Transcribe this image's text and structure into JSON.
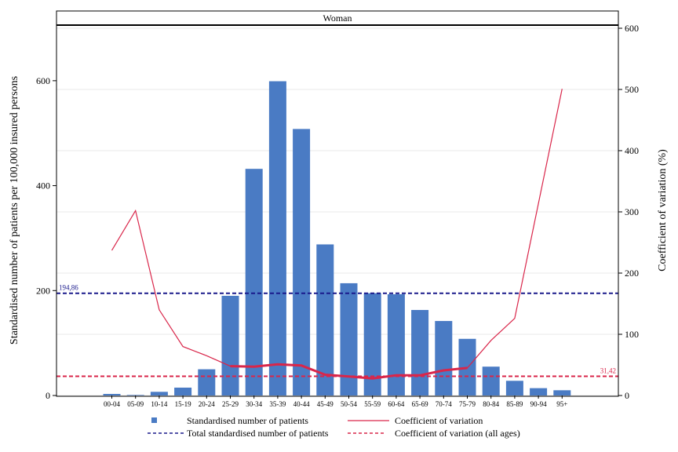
{
  "chart_data": {
    "type": "bar",
    "panel_title": "Woman",
    "categories": [
      "00-04",
      "05-09",
      "10-14",
      "15-19",
      "20-24",
      "25-29",
      "30-34",
      "35-39",
      "40-44",
      "45-49",
      "50-54",
      "55-59",
      "60-64",
      "65-69",
      "70-74",
      "75-79",
      "80-84",
      "85-89",
      "90-94",
      "95+"
    ],
    "ylabel": "Standardised number of patients per 100,000 insured persons",
    "y2label": "Coefficient of variation (%)",
    "ylim": [
      0,
      700
    ],
    "y2lim": [
      0,
      600
    ],
    "yticks": [
      0,
      200,
      400,
      600
    ],
    "y2ticks": [
      0,
      100,
      200,
      300,
      400,
      500,
      600
    ],
    "grid": true,
    "legend_position": "bottom",
    "series": [
      {
        "name": "Standardised number of patients",
        "kind": "bar",
        "axis": "left",
        "color": "#4a7bc4",
        "values": [
          3,
          1,
          7,
          15,
          50,
          190,
          432,
          599,
          508,
          288,
          214,
          195,
          193,
          163,
          142,
          108,
          55,
          28,
          14,
          10
        ]
      },
      {
        "name": "Coefficient of variation",
        "kind": "line",
        "axis": "right",
        "color": "#d9264a",
        "values": [
          237,
          302,
          140,
          80,
          65,
          48,
          47,
          51,
          49,
          34,
          31,
          28,
          33,
          33,
          41,
          45,
          90,
          126,
          null,
          501
        ],
        "bold_range": [
          5,
          15
        ]
      }
    ],
    "reference_lines": [
      {
        "name": "Total standardised number of patients",
        "axis": "left",
        "value": 194.86,
        "label": "194,86",
        "color": "#1a1a8c"
      },
      {
        "name": "Coefficient of variation (all ages)",
        "axis": "right",
        "value": 31.42,
        "label": "31,42",
        "color": "#d9264a"
      }
    ],
    "legend": [
      {
        "label": "Standardised number of patients",
        "symbol": "square",
        "color": "#4a7bc4"
      },
      {
        "label": "Coefficient of variation",
        "symbol": "line",
        "color": "#d9264a"
      },
      {
        "label": "Total standardised number of patients",
        "symbol": "dash",
        "color": "#1a1a8c"
      },
      {
        "label": "Coefficient of variation (all ages)",
        "symbol": "dash",
        "color": "#d9264a"
      }
    ]
  }
}
